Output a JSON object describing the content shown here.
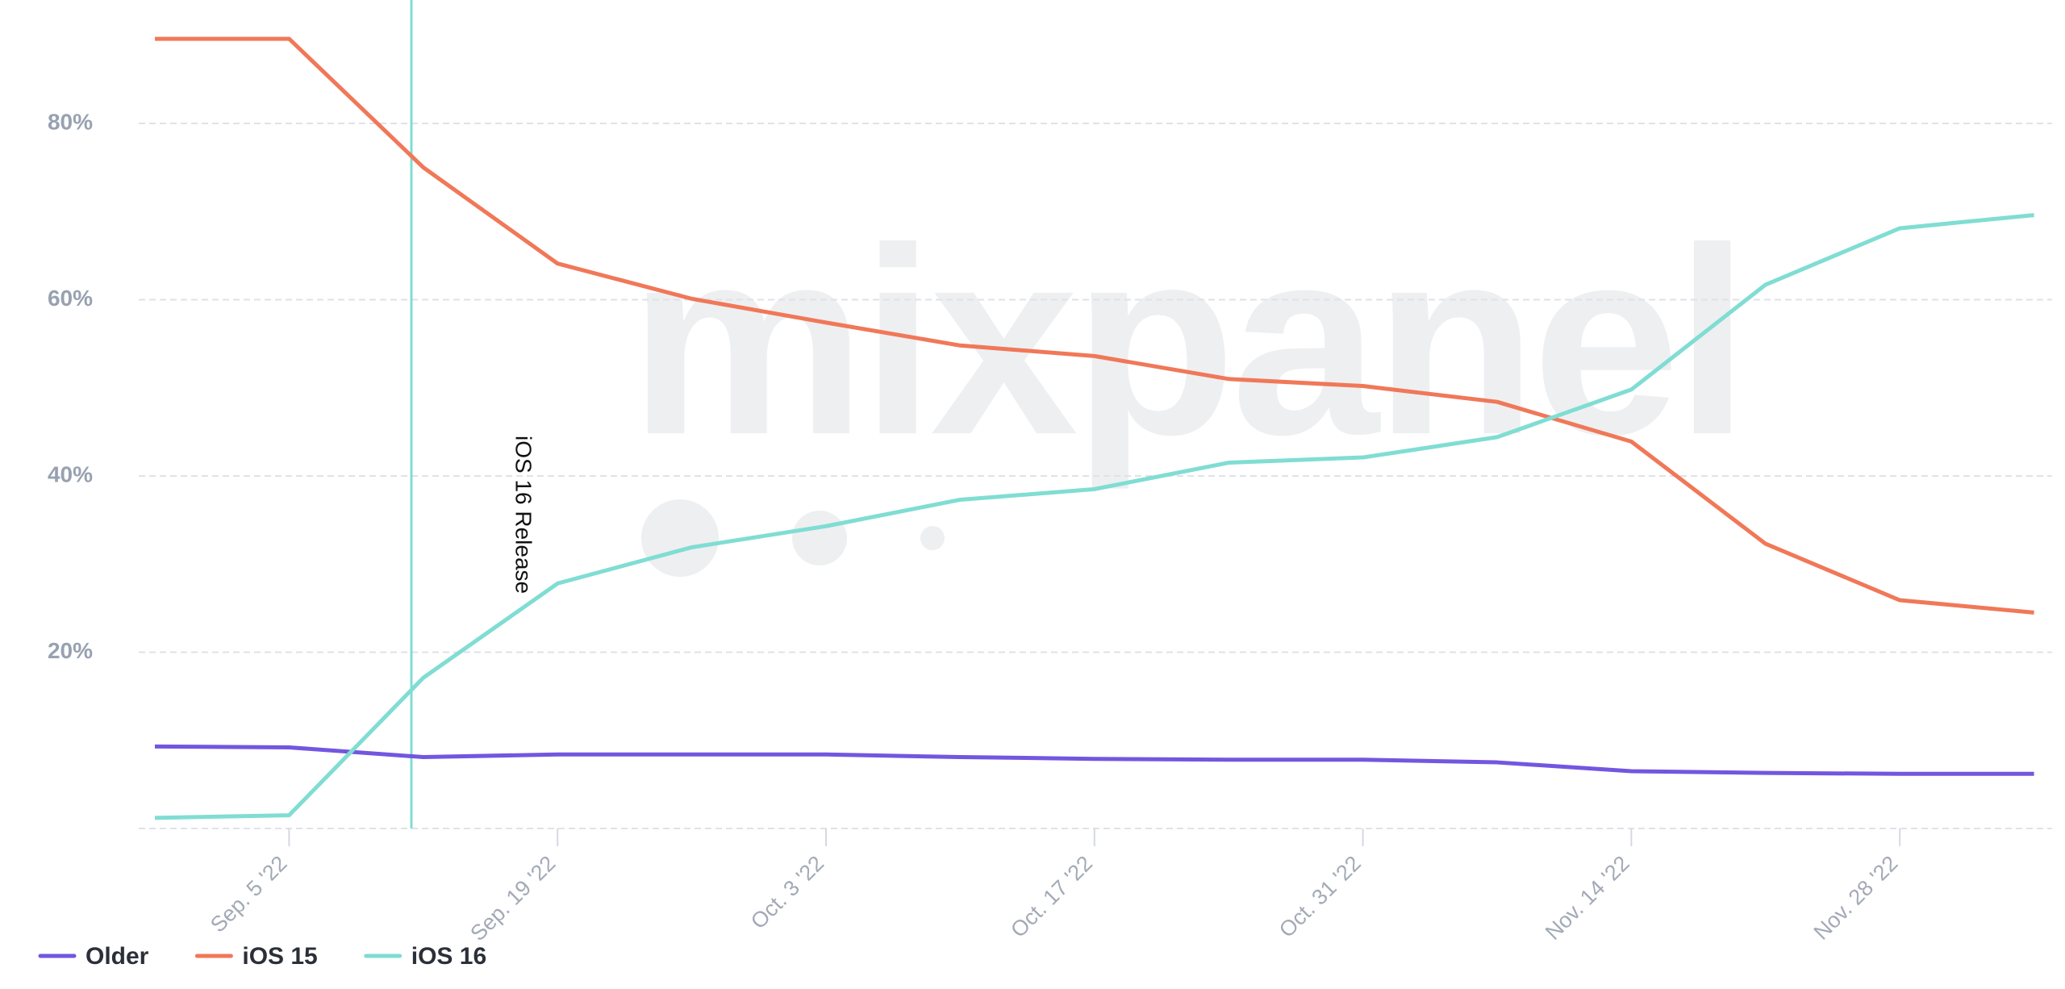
{
  "chart_data": {
    "type": "line",
    "watermark": "mixpanel",
    "annotation": "iOS 16 Release",
    "categories": [
      null,
      "Sep. 5 '22",
      null,
      "Sep. 19 '22",
      null,
      "Oct. 3 '22",
      null,
      "Oct. 17 '22",
      null,
      "Oct. 31 '22",
      null,
      "Nov. 14 '22",
      null,
      "Nov. 28 '22",
      null
    ],
    "series": [
      {
        "name": "Older",
        "color": "#7356e0",
        "values": [
          9.3,
          9.2,
          8.1,
          8.4,
          8.4,
          8.4,
          8.1,
          7.9,
          7.8,
          7.8,
          7.5,
          6.5,
          6.3,
          6.2,
          6.2
        ]
      },
      {
        "name": "iOS 15",
        "color": "#f07858",
        "values": [
          89.6,
          89.6,
          75.0,
          64.1,
          60.1,
          57.4,
          54.8,
          53.6,
          51.0,
          50.2,
          48.4,
          43.9,
          32.3,
          25.9,
          24.5
        ]
      },
      {
        "name": "iOS 16",
        "color": "#80ddd3",
        "values": [
          1.2,
          1.5,
          17.1,
          27.8,
          31.9,
          34.3,
          37.3,
          38.5,
          41.5,
          42.1,
          44.4,
          49.8,
          61.7,
          68.1,
          69.6
        ]
      }
    ],
    "ylim": [
      0,
      94
    ],
    "yticks": [
      {
        "value": 20,
        "label": "20%"
      },
      {
        "value": 40,
        "label": "40%"
      },
      {
        "value": 60,
        "label": "60%"
      },
      {
        "value": 80,
        "label": "80%"
      }
    ],
    "grid": true
  }
}
